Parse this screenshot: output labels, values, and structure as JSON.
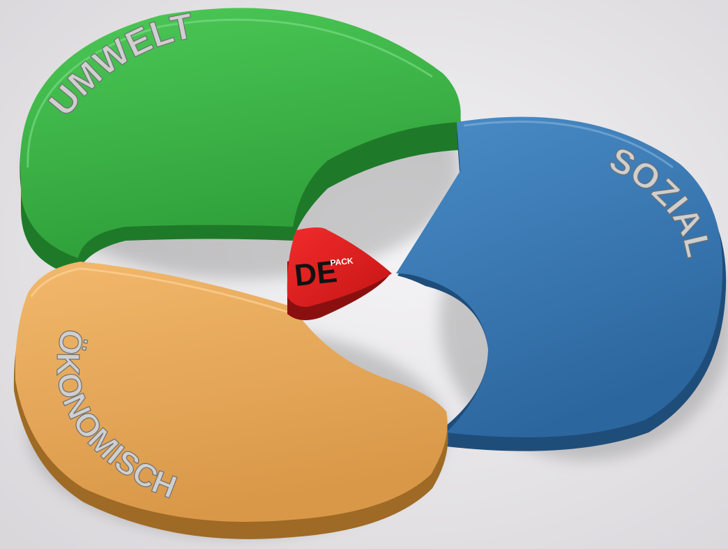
{
  "diagram": {
    "segments": [
      {
        "id": "umwelt",
        "label": "UMWELT",
        "color": "#3fb64a",
        "side_color": "#1f7a2a"
      },
      {
        "id": "sozial",
        "label": "SOZIAL",
        "color": "#3c7bb6",
        "side_color": "#1f4d78"
      },
      {
        "id": "oekonomisch",
        "label": "ÖKONOMISCH",
        "color": "#ecae60",
        "side_color": "#a06a24"
      }
    ],
    "center": {
      "logo_main": "DE",
      "logo_sub": "PACK",
      "color": "#e22222",
      "side_color": "#8a1010"
    }
  }
}
